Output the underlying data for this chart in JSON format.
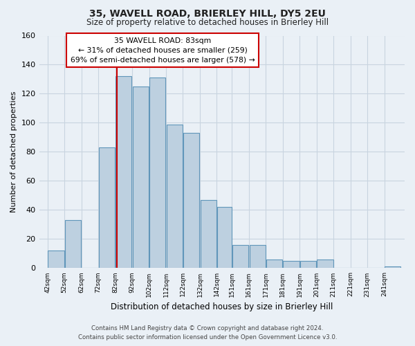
{
  "title": "35, WAVELL ROAD, BRIERLEY HILL, DY5 2EU",
  "subtitle": "Size of property relative to detached houses in Brierley Hill",
  "xlabel": "Distribution of detached houses by size in Brierley Hill",
  "ylabel": "Number of detached properties",
  "bin_left_edges": [
    42,
    52,
    62,
    72,
    82,
    92,
    102,
    112,
    122,
    132,
    142,
    151,
    161,
    171,
    181,
    191,
    201,
    211,
    221,
    231,
    241
  ],
  "bin_widths": [
    10,
    10,
    10,
    10,
    10,
    10,
    10,
    10,
    10,
    10,
    9,
    10,
    10,
    10,
    10,
    10,
    10,
    10,
    10,
    10,
    10
  ],
  "bar_heights": [
    12,
    33,
    0,
    83,
    132,
    125,
    131,
    99,
    93,
    47,
    42,
    16,
    16,
    6,
    5,
    5,
    6,
    0,
    0,
    0,
    1
  ],
  "bar_color": "#bdd0e0",
  "bar_edge_color": "#6096ba",
  "tick_labels": [
    "42sqm",
    "52sqm",
    "62sqm",
    "72sqm",
    "82sqm",
    "92sqm",
    "102sqm",
    "112sqm",
    "122sqm",
    "132sqm",
    "142sqm",
    "151sqm",
    "161sqm",
    "171sqm",
    "181sqm",
    "191sqm",
    "201sqm",
    "211sqm",
    "221sqm",
    "231sqm",
    "241sqm"
  ],
  "ylim": [
    0,
    160
  ],
  "yticks": [
    0,
    20,
    40,
    60,
    80,
    100,
    120,
    140,
    160
  ],
  "xlim_left": 37,
  "xlim_right": 253,
  "vline_x": 83,
  "vline_color": "#cc0000",
  "annotation_title": "35 WAVELL ROAD: 83sqm",
  "annotation_line1": "← 31% of detached houses are smaller (259)",
  "annotation_line2": "69% of semi-detached houses are larger (578) →",
  "annotation_box_facecolor": "#ffffff",
  "annotation_box_edgecolor": "#cc0000",
  "footer1": "Contains HM Land Registry data © Crown copyright and database right 2024.",
  "footer2": "Contains public sector information licensed under the Open Government Licence v3.0.",
  "bg_color": "#eaf0f6",
  "plot_bg_color": "#eaf0f6",
  "grid_color": "#c8d4e0"
}
